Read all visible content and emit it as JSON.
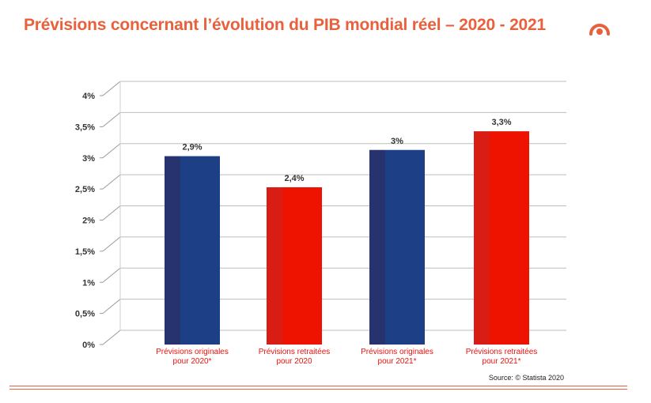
{
  "header": {
    "title": "Prévisions concernant l’évolution du PIB mondial réel – 2020 - 2021",
    "logo_icon": "arc-dot-logo-icon",
    "accent_color": "#e8603c"
  },
  "chart_data": {
    "type": "bar",
    "title": "Prévisions concernant l’évolution du PIB mondial réel – 2020 - 2021",
    "categories": [
      [
        "Prévisions originales",
        "pour 2020*"
      ],
      [
        "Prévisions retraitées",
        "pour 2020"
      ],
      [
        "Prévisions originales",
        "pour 2021*"
      ],
      [
        "Prévisions retraitées",
        "pour 2021*"
      ]
    ],
    "values": [
      2.9,
      2.4,
      3.0,
      3.3
    ],
    "value_labels": [
      "2,9%",
      "2,4%",
      "3%",
      "3,3%"
    ],
    "colors": [
      "#1c3f86",
      "#ee1200",
      "#1c3f86",
      "#ee1200"
    ],
    "shadow_colors": [
      "#26336e",
      "#d81e14",
      "#26336e",
      "#d81e14"
    ],
    "yticks": [
      0,
      0.5,
      1,
      1.5,
      2,
      2.5,
      3,
      3.5,
      4
    ],
    "ytick_labels": [
      "0%",
      "0,5%",
      "1%",
      "1,5%",
      "2%",
      "2,5%",
      "3%",
      "3,5%",
      "4%"
    ],
    "ylim": [
      0,
      4
    ],
    "xlabel": "",
    "ylabel": "",
    "grid": true,
    "legend": "none"
  },
  "footer": {
    "source": "Source: © Statista 2020"
  }
}
